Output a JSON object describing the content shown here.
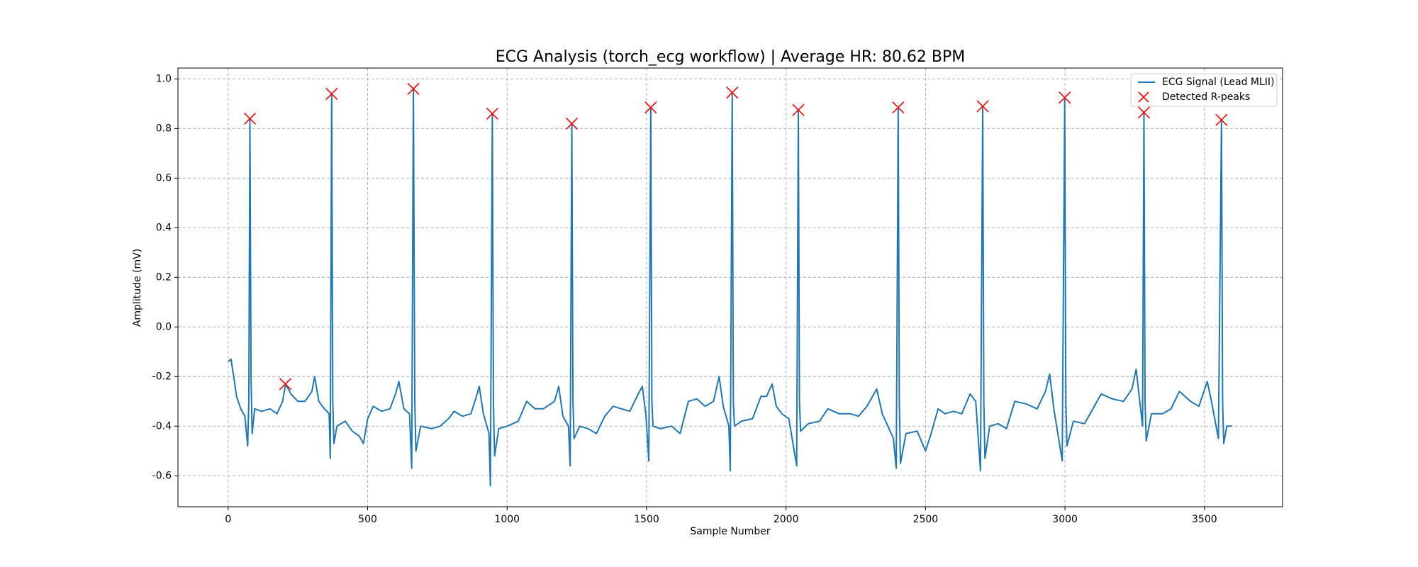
{
  "chart_data": {
    "type": "line",
    "title": "ECG Analysis (torch_ecg workflow) | Average HR: 80.62 BPM",
    "xlabel": "Sample Number",
    "ylabel": "Amplitude (mV)",
    "xlim": [
      -180,
      3780
    ],
    "ylim": [
      -0.725,
      1.044
    ],
    "xticks": [
      0,
      500,
      1000,
      1500,
      2000,
      2500,
      3000,
      3500
    ],
    "yticks": [
      -0.6,
      -0.4,
      -0.2,
      0.0,
      0.2,
      0.4,
      0.6,
      0.8,
      1.0
    ],
    "grid": true,
    "legend": "upper right",
    "x": [
      0,
      10,
      20,
      30,
      45,
      60,
      70,
      74,
      78,
      82,
      86,
      95,
      120,
      150,
      175,
      195,
      206,
      225,
      250,
      275,
      300,
      310,
      325,
      345,
      362,
      366,
      371,
      375,
      379,
      390,
      420,
      445,
      470,
      485,
      500,
      520,
      550,
      580,
      600,
      612,
      630,
      650,
      658,
      664,
      669,
      673,
      690,
      730,
      760,
      790,
      810,
      840,
      870,
      890,
      900,
      915,
      935,
      940,
      947,
      951,
      955,
      970,
      1000,
      1040,
      1070,
      1100,
      1130,
      1170,
      1185,
      1200,
      1220,
      1226,
      1232,
      1236,
      1240,
      1260,
      1290,
      1320,
      1350,
      1380,
      1410,
      1440,
      1470,
      1485,
      1498,
      1508,
      1515,
      1519,
      1523,
      1550,
      1590,
      1620,
      1650,
      1680,
      1710,
      1740,
      1760,
      1775,
      1795,
      1800,
      1807,
      1811,
      1815,
      1840,
      1880,
      1910,
      1930,
      1950,
      1965,
      1985,
      2010,
      2038,
      2044,
      2048,
      2052,
      2080,
      2120,
      2150,
      2190,
      2230,
      2260,
      2290,
      2325,
      2345,
      2385,
      2395,
      2402,
      2406,
      2410,
      2430,
      2470,
      2500,
      2520,
      2545,
      2570,
      2600,
      2630,
      2660,
      2680,
      2697,
      2705,
      2709,
      2713,
      2730,
      2760,
      2790,
      2820,
      2860,
      2900,
      2930,
      2945,
      2960,
      2990,
      2999,
      3003,
      3007,
      3030,
      3070,
      3100,
      3130,
      3170,
      3210,
      3240,
      3255,
      3268,
      3278,
      3283,
      3287,
      3291,
      3310,
      3350,
      3380,
      3410,
      3450,
      3480,
      3510,
      3525,
      3550,
      3561,
      3565,
      3569,
      3580,
      3599
    ],
    "series": [
      {
        "name": "ECG Signal (Lead MLII)",
        "color": "#1f77b4",
        "values": [
          -0.14,
          -0.13,
          -0.2,
          -0.28,
          -0.33,
          -0.36,
          -0.48,
          -0.3,
          0.84,
          -0.2,
          -0.43,
          -0.33,
          -0.34,
          -0.33,
          -0.35,
          -0.3,
          -0.23,
          -0.27,
          -0.3,
          -0.3,
          -0.26,
          -0.2,
          -0.3,
          -0.33,
          -0.35,
          -0.53,
          0.94,
          -0.3,
          -0.47,
          -0.4,
          -0.38,
          -0.42,
          -0.44,
          -0.47,
          -0.37,
          -0.32,
          -0.34,
          -0.33,
          -0.27,
          -0.22,
          -0.33,
          -0.35,
          -0.57,
          0.96,
          -0.3,
          -0.5,
          -0.4,
          -0.41,
          -0.4,
          -0.37,
          -0.34,
          -0.36,
          -0.35,
          -0.28,
          -0.24,
          -0.35,
          -0.43,
          -0.64,
          0.86,
          -0.3,
          -0.52,
          -0.41,
          -0.4,
          -0.38,
          -0.3,
          -0.33,
          -0.33,
          -0.3,
          -0.24,
          -0.36,
          -0.4,
          -0.56,
          0.82,
          -0.3,
          -0.45,
          -0.4,
          -0.41,
          -0.43,
          -0.36,
          -0.32,
          -0.33,
          -0.34,
          -0.27,
          -0.24,
          -0.36,
          -0.54,
          0.885,
          -0.3,
          -0.4,
          -0.41,
          -0.4,
          -0.43,
          -0.3,
          -0.29,
          -0.32,
          -0.3,
          -0.2,
          -0.32,
          -0.4,
          -0.58,
          0.945,
          -0.3,
          -0.4,
          -0.38,
          -0.37,
          -0.28,
          -0.28,
          -0.23,
          -0.32,
          -0.35,
          -0.37,
          -0.56,
          0.875,
          -0.3,
          -0.42,
          -0.39,
          -0.38,
          -0.33,
          -0.35,
          -0.35,
          -0.36,
          -0.32,
          -0.25,
          -0.35,
          -0.45,
          -0.57,
          0.885,
          -0.3,
          -0.55,
          -0.43,
          -0.42,
          -0.5,
          -0.43,
          -0.33,
          -0.35,
          -0.34,
          -0.35,
          -0.27,
          -0.3,
          -0.58,
          0.89,
          -0.3,
          -0.53,
          -0.4,
          -0.39,
          -0.41,
          -0.3,
          -0.31,
          -0.33,
          -0.26,
          -0.19,
          -0.33,
          -0.54,
          0.925,
          -0.3,
          -0.48,
          -0.38,
          -0.39,
          -0.33,
          -0.27,
          -0.29,
          -0.3,
          -0.25,
          -0.17,
          -0.3,
          -0.4,
          0.865,
          -0.3,
          -0.46,
          -0.35,
          -0.35,
          -0.33,
          -0.26,
          -0.3,
          -0.32,
          -0.22,
          -0.3,
          -0.45,
          0.835,
          -0.3,
          -0.47,
          -0.4,
          -0.4
        ]
      },
      {
        "name": "Detected R-peaks",
        "color": "#ff0000",
        "type": "scatter",
        "x": [
          78,
          205,
          371,
          664,
          947,
          1232,
          1515,
          1807,
          2044,
          2402,
          2705,
          2999,
          3283,
          3561
        ],
        "values": [
          0.84,
          -0.23,
          0.94,
          0.96,
          0.86,
          0.82,
          0.885,
          0.945,
          0.875,
          0.885,
          0.89,
          0.925,
          0.865,
          0.835
        ]
      }
    ]
  }
}
